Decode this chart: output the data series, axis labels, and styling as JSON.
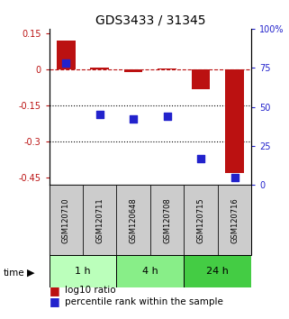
{
  "title": "GDS3433 / 31345",
  "samples": [
    "GSM120710",
    "GSM120711",
    "GSM120648",
    "GSM120708",
    "GSM120715",
    "GSM120716"
  ],
  "log10_ratio": [
    0.12,
    0.008,
    -0.012,
    0.005,
    -0.08,
    -0.43
  ],
  "percentile_rank": [
    78,
    45,
    42,
    44,
    17,
    5
  ],
  "bar_color": "#bb1111",
  "square_color": "#2222cc",
  "groups": [
    {
      "label": "1 h",
      "indices": [
        0,
        1
      ],
      "color": "#bbffbb"
    },
    {
      "label": "4 h",
      "indices": [
        2,
        3
      ],
      "color": "#88ee88"
    },
    {
      "label": "24 h",
      "indices": [
        4,
        5
      ],
      "color": "#44cc44"
    }
  ],
  "ylim_left": [
    -0.48,
    0.17
  ],
  "ylim_right": [
    0,
    100
  ],
  "yticks_left": [
    0.15,
    0.0,
    -0.15,
    -0.3,
    -0.45
  ],
  "ytick_labels_left": [
    "0.15",
    "0",
    "-0.15",
    "-0.3",
    "-0.45"
  ],
  "yticks_right": [
    100,
    75,
    50,
    25,
    0
  ],
  "ytick_labels_right": [
    "100%",
    "75",
    "50",
    "25",
    "0"
  ],
  "hlines": [
    -0.15,
    -0.3
  ],
  "bar_width": 0.55,
  "square_size": 30,
  "title_fontsize": 10,
  "tick_fontsize": 7,
  "legend_fontsize": 7.5,
  "sample_bg": "#cccccc"
}
